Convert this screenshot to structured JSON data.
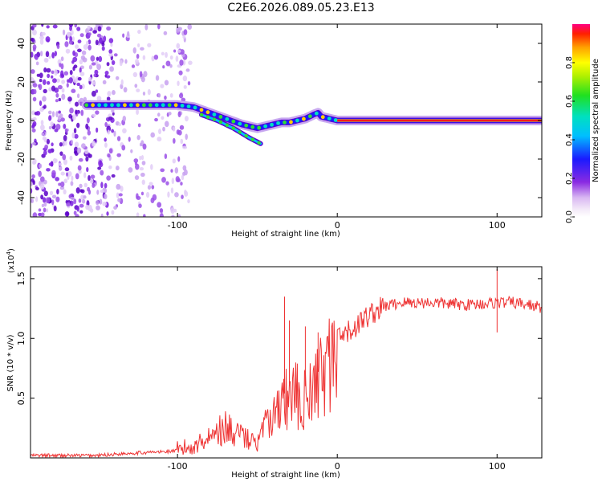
{
  "chart_data": [
    {
      "type": "heatmap",
      "title": "C2E6.2026.089.05.23.E13",
      "xlabel": "Height of straight line (km)",
      "ylabel": "Frequency (Hz)",
      "xlim": [
        -192,
        128
      ],
      "ylim": [
        -50,
        50
      ],
      "xticks": [
        -100,
        0,
        100
      ],
      "yticks": [
        -40,
        -20,
        0,
        20,
        40
      ],
      "colorbar": {
        "label": "Normalized spectral amplitude",
        "range": [
          0,
          1
        ],
        "ticks": [
          0.0,
          0.2,
          0.4,
          0.6,
          0.8
        ]
      },
      "ridge": {
        "x": [
          -157,
          -140,
          -120,
          -100,
          -90,
          -80,
          -70,
          -60,
          -50,
          -45,
          -40,
          -35,
          -30,
          -25,
          -20,
          -15,
          -12,
          -10,
          -5,
          0,
          20,
          50,
          100,
          128
        ],
        "freq": [
          8,
          8,
          8,
          8,
          7,
          4,
          1,
          -2,
          -4,
          -3,
          -2,
          -1,
          -1,
          0,
          1,
          3,
          4,
          2,
          1,
          0,
          0,
          0,
          0,
          0
        ]
      },
      "branch": {
        "x": [
          -85,
          -75,
          -65,
          -55,
          -48
        ],
        "freq": [
          3,
          0,
          -4,
          -9,
          -12
        ]
      },
      "noise_region_x": [
        -192,
        -92
      ]
    },
    {
      "type": "line",
      "xlabel": "Height of straight line (km)",
      "ylabel": "SNR (10 * v/v)",
      "multiplier_label": "(x10",
      "multiplier_exp": "4",
      "multiplier_close": ")",
      "xlim": [
        -192,
        128
      ],
      "ylim": [
        0,
        1.6
      ],
      "xticks": [
        -100,
        0,
        100
      ],
      "yticks": [
        0.5,
        1.0,
        1.5
      ],
      "color": "#ee3333",
      "profile": {
        "x": [
          -192,
          -150,
          -130,
          -110,
          -100,
          -90,
          -85,
          -80,
          -75,
          -70,
          -65,
          -60,
          -55,
          -50,
          -45,
          -40,
          -35,
          -30,
          -25,
          -20,
          -15,
          -10,
          -5,
          0,
          10,
          20,
          30,
          40,
          60,
          80,
          100,
          110,
          120,
          128
        ],
        "snr": [
          0.02,
          0.02,
          0.04,
          0.05,
          0.06,
          0.1,
          0.14,
          0.18,
          0.24,
          0.26,
          0.24,
          0.2,
          0.17,
          0.14,
          0.3,
          0.4,
          0.5,
          0.6,
          0.6,
          0.6,
          0.6,
          0.8,
          0.9,
          0.98,
          1.08,
          1.2,
          1.27,
          1.3,
          1.3,
          1.28,
          1.3,
          1.3,
          1.28,
          1.26
        ]
      },
      "spikes": [
        {
          "x": -33,
          "snr": 1.35
        },
        {
          "x": -30,
          "snr": 1.15
        },
        {
          "x": -20,
          "snr": 1.1
        },
        {
          "x": -12,
          "snr": 1.05
        },
        {
          "x": 100,
          "snr": 1.58
        },
        {
          "x": 100,
          "snr": 1.05
        }
      ]
    }
  ]
}
